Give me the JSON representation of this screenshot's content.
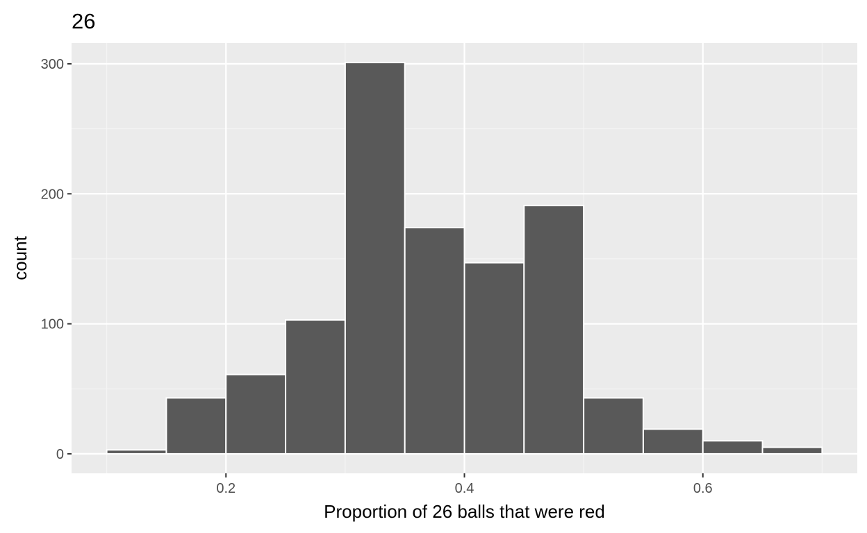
{
  "chart_data": {
    "type": "bar",
    "title": "26",
    "xlabel": "Proportion of 26 balls that were red",
    "ylabel": "count",
    "xlim": [
      0.0705,
      0.7295
    ],
    "ylim": [
      -15,
      316
    ],
    "x_ticks": [
      0.2,
      0.4,
      0.6
    ],
    "x_tick_labels": [
      "0.2",
      "0.4",
      "0.6"
    ],
    "y_ticks": [
      0,
      100,
      200,
      300
    ],
    "y_tick_labels": [
      "0",
      "100",
      "200",
      "300"
    ],
    "x_minor_ticks": [
      0.1,
      0.3,
      0.5,
      0.7
    ],
    "y_minor_ticks": [
      50,
      150,
      250
    ],
    "bins": [
      {
        "x0": 0.1,
        "x1": 0.15,
        "count": 3
      },
      {
        "x0": 0.15,
        "x1": 0.2,
        "count": 43
      },
      {
        "x0": 0.2,
        "x1": 0.25,
        "count": 61
      },
      {
        "x0": 0.25,
        "x1": 0.3,
        "count": 103
      },
      {
        "x0": 0.3,
        "x1": 0.35,
        "count": 301
      },
      {
        "x0": 0.35,
        "x1": 0.4,
        "count": 174
      },
      {
        "x0": 0.4,
        "x1": 0.45,
        "count": 147
      },
      {
        "x0": 0.45,
        "x1": 0.5,
        "count": 191
      },
      {
        "x0": 0.5,
        "x1": 0.55,
        "count": 43
      },
      {
        "x0": 0.55,
        "x1": 0.6,
        "count": 19
      },
      {
        "x0": 0.6,
        "x1": 0.65,
        "count": 10
      },
      {
        "x0": 0.65,
        "x1": 0.7,
        "count": 5
      }
    ],
    "grid": true,
    "legend": "none",
    "colors": {
      "panel_background": "#ebebeb",
      "grid_major": "#ffffff",
      "grid_minor": "#f5f5f5",
      "bar_fill": "#595959",
      "bar_outline": "#ffffff",
      "tick_mark": "#333333",
      "tick_label": "#4d4d4d"
    }
  }
}
